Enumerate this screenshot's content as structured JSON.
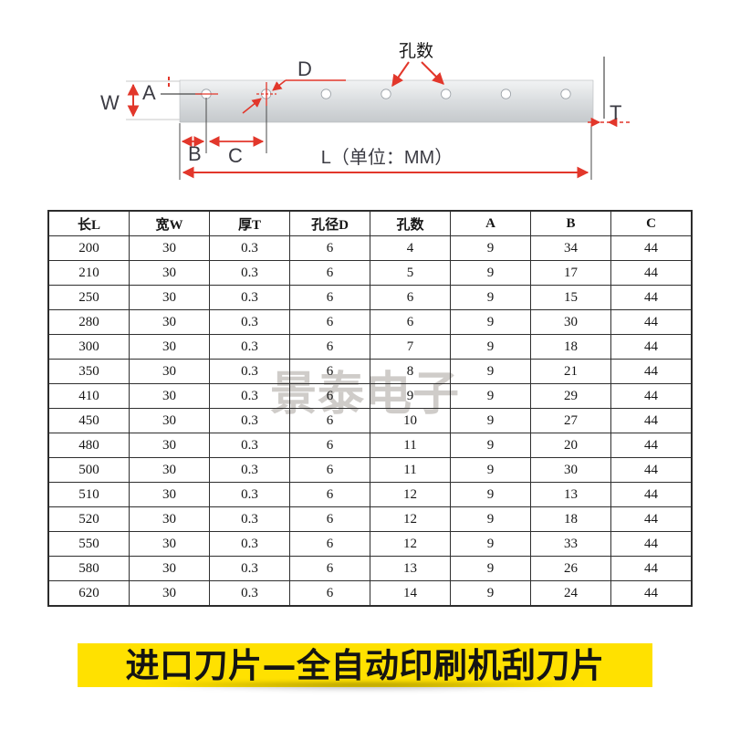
{
  "diagram": {
    "labels": {
      "width": "W",
      "edge_a": "A",
      "hole_dia": "D",
      "margin_b": "B",
      "pitch_c": "C",
      "thickness": "T",
      "length": "L（单位：MM）",
      "hole_count": "孔数"
    },
    "hole_count": 7,
    "colors": {
      "dimension_red": "#e2372b",
      "strip_light": "#f2f3f4",
      "strip_dark": "#c5c9cc"
    }
  },
  "watermark": {
    "text": "景泰电子",
    "color": "#cfccc9"
  },
  "table": {
    "headers": [
      "长L",
      "宽W",
      "厚T",
      "孔径D",
      "孔数",
      "A",
      "B",
      "C"
    ],
    "rows": [
      [
        "200",
        "30",
        "0.3",
        "6",
        "4",
        "9",
        "34",
        "44"
      ],
      [
        "210",
        "30",
        "0.3",
        "6",
        "5",
        "9",
        "17",
        "44"
      ],
      [
        "250",
        "30",
        "0.3",
        "6",
        "6",
        "9",
        "15",
        "44"
      ],
      [
        "280",
        "30",
        "0.3",
        "6",
        "6",
        "9",
        "30",
        "44"
      ],
      [
        "300",
        "30",
        "0.3",
        "6",
        "7",
        "9",
        "18",
        "44"
      ],
      [
        "350",
        "30",
        "0.3",
        "6",
        "8",
        "9",
        "21",
        "44"
      ],
      [
        "410",
        "30",
        "0.3",
        "6",
        "9",
        "9",
        "29",
        "44"
      ],
      [
        "450",
        "30",
        "0.3",
        "6",
        "10",
        "9",
        "27",
        "44"
      ],
      [
        "480",
        "30",
        "0.3",
        "6",
        "11",
        "9",
        "20",
        "44"
      ],
      [
        "500",
        "30",
        "0.3",
        "6",
        "11",
        "9",
        "30",
        "44"
      ],
      [
        "510",
        "30",
        "0.3",
        "6",
        "12",
        "9",
        "13",
        "44"
      ],
      [
        "520",
        "30",
        "0.3",
        "6",
        "12",
        "9",
        "18",
        "44"
      ],
      [
        "550",
        "30",
        "0.3",
        "6",
        "12",
        "9",
        "33",
        "44"
      ],
      [
        "580",
        "30",
        "0.3",
        "6",
        "13",
        "9",
        "26",
        "44"
      ],
      [
        "620",
        "30",
        "0.3",
        "6",
        "14",
        "9",
        "24",
        "44"
      ]
    ]
  },
  "banner": {
    "text": "进口刀片—全自动印刷机刮刀片",
    "background": "#ffe100",
    "text_color": "#141414"
  }
}
